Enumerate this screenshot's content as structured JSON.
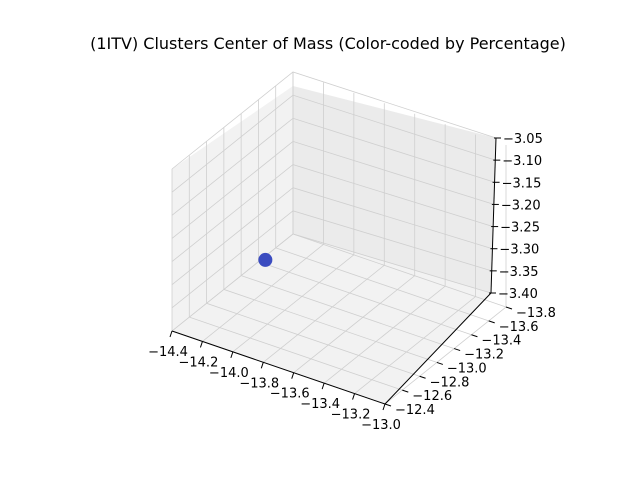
{
  "chart_data": {
    "type": "scatter",
    "title": "(1ITV) Clusters Center of Mass (Color-coded by Percentage)",
    "xlabel": "",
    "ylabel": "",
    "zlabel": "",
    "xlim": [
      -14.4,
      -13.0
    ],
    "ylim": [
      -13.8,
      -12.4
    ],
    "zlim": [
      -3.4,
      -3.05
    ],
    "x_ticks": [
      "−14.4",
      "−14.2",
      "−14.0",
      "−13.8",
      "−13.6",
      "−13.4",
      "−13.2",
      "−13.0"
    ],
    "y_ticks": [
      "−13.8",
      "−13.6",
      "−13.4",
      "−13.2",
      "−13.0",
      "−12.8",
      "−12.6",
      "−12.4"
    ],
    "z_ticks": [
      "−3.40",
      "−3.35",
      "−3.30",
      "−3.25",
      "−3.20",
      "−3.15",
      "−3.10",
      "−3.05"
    ],
    "points": [
      {
        "x": -13.9,
        "y": -12.6,
        "z": -3.22,
        "color": "#3b4cc0"
      }
    ],
    "grid": true,
    "legend": "none"
  }
}
